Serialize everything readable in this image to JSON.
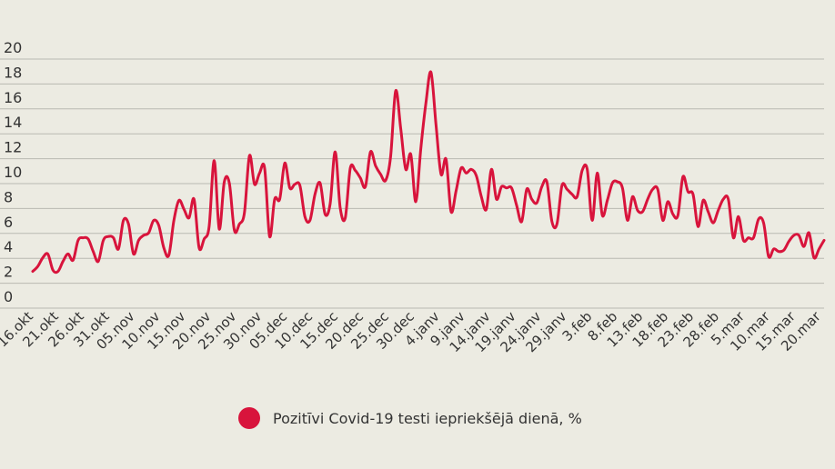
{
  "chart_data": {
    "type": "line",
    "ylim": [
      0,
      20
    ],
    "yticks": [
      0,
      2,
      4,
      6,
      8,
      10,
      12,
      14,
      16,
      18,
      20
    ],
    "grid": true,
    "legend_position": "bottom-center",
    "x_tick_labels": [
      "16.okt",
      "21.okt",
      "26.okt",
      "31.okt",
      "05.nov",
      "10.nov",
      "15.nov",
      "20.nov",
      "25.nov",
      "30.nov",
      "05.dec",
      "10.dec",
      "15.dec",
      "20.dec",
      "25.dec",
      "30.dec",
      "4.janv",
      "9.janv",
      "14.janv",
      "19.janv",
      "24.janv",
      "29.janv",
      "3.feb",
      "8.feb",
      "13.feb",
      "18.feb",
      "23.feb",
      "28.feb",
      "5.mar",
      "10.mar",
      "15.mar",
      "20.mar"
    ],
    "series": [
      {
        "name": "Pozitīvi Covid-19 testi iepriekšējā dienā, %",
        "color": "#d8143c",
        "values": [
          2.0,
          2.4,
          3.1,
          3.4,
          2.1,
          2.0,
          2.8,
          3.4,
          2.9,
          4.5,
          4.7,
          4.6,
          3.6,
          2.8,
          4.5,
          4.8,
          4.7,
          3.8,
          6.1,
          5.8,
          3.4,
          4.5,
          4.9,
          5.1,
          6.1,
          5.7,
          3.9,
          3.3,
          6.1,
          7.7,
          7.0,
          6.3,
          7.8,
          3.9,
          4.6,
          5.6,
          10.9,
          5.4,
          9.2,
          9.1,
          5.3,
          5.8,
          6.7,
          11.3,
          9.0,
          9.9,
          10.3,
          4.8,
          7.8,
          7.8,
          10.7,
          8.7,
          9.0,
          8.9,
          6.4,
          6.1,
          8.2,
          9.1,
          6.6,
          7.4,
          11.6,
          7.1,
          6.3,
          10.3,
          10.1,
          9.5,
          8.8,
          11.6,
          10.5,
          9.8,
          9.3,
          11.2,
          16.5,
          13.5,
          10.2,
          11.4,
          7.6,
          11.9,
          15.5,
          18.0,
          13.8,
          9.8,
          11.0,
          6.8,
          8.5,
          10.3,
          9.9,
          10.2,
          9.7,
          8.0,
          7.0,
          10.2,
          7.8,
          8.8,
          8.7,
          8.7,
          7.3,
          6.0,
          8.6,
          7.8,
          7.5,
          8.8,
          9.2,
          6.0,
          5.8,
          8.9,
          8.6,
          8.2,
          8.0,
          10.1,
          10.2,
          6.1,
          9.9,
          6.5,
          7.7,
          9.1,
          9.2,
          8.7,
          6.1,
          8.0,
          6.9,
          6.8,
          7.8,
          8.6,
          8.6,
          6.1,
          7.6,
          6.6,
          6.5,
          9.6,
          8.4,
          8.2,
          5.6,
          7.7,
          6.8,
          5.9,
          6.9,
          7.8,
          7.8,
          4.7,
          6.4,
          4.5,
          4.7,
          4.7,
          6.2,
          5.9,
          3.2,
          3.8,
          3.6,
          3.7,
          4.4,
          4.9,
          4.9,
          4.0,
          5.1,
          3.1,
          3.8,
          4.5
        ]
      }
    ]
  }
}
